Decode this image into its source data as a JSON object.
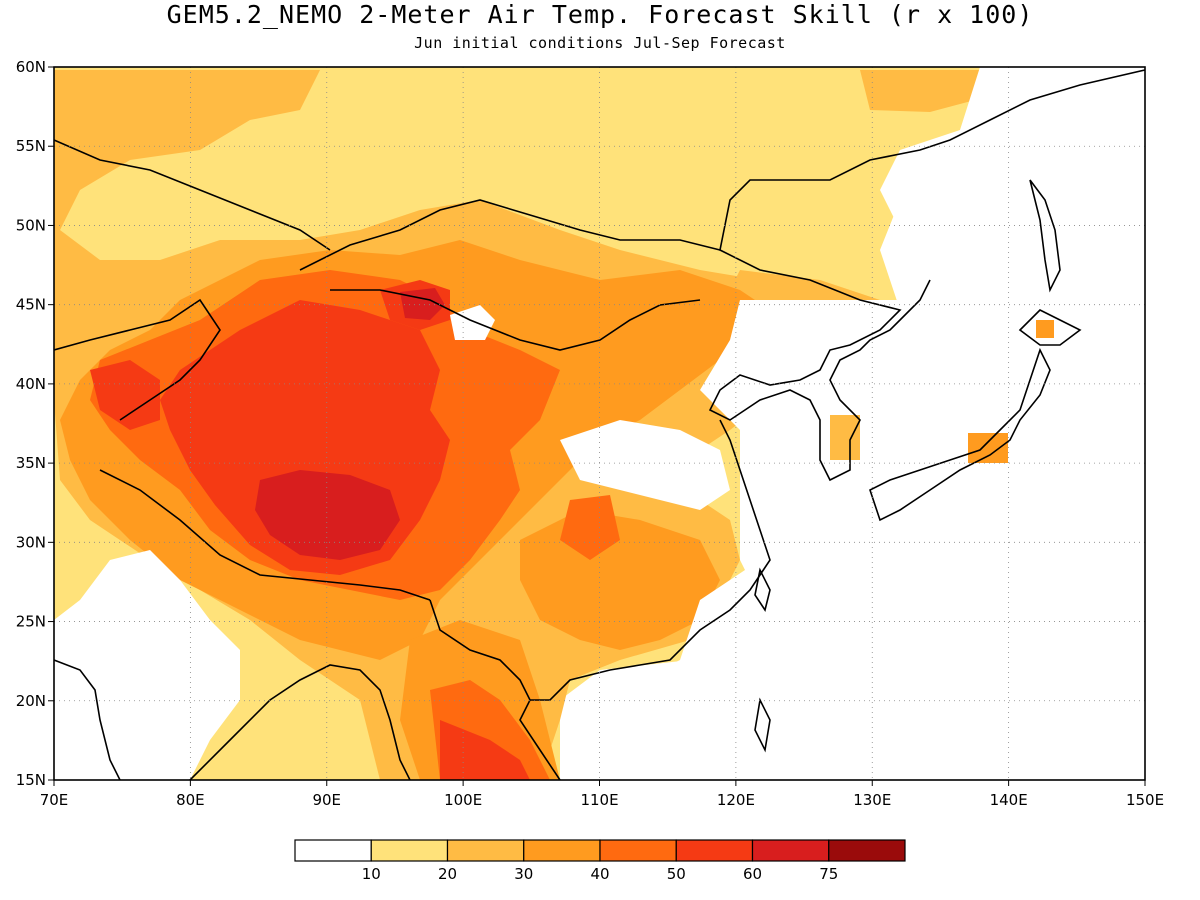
{
  "title": "GEM5.2_NEMO 2-Meter Air Temp. Forecast Skill (r x 100)",
  "subtitle": "Jun initial conditions   Jul-Sep Forecast",
  "map": {
    "lon_range": [
      70,
      150
    ],
    "lat_range": [
      15,
      60
    ],
    "lon_ticks": [
      "70E",
      "80E",
      "90E",
      "100E",
      "110E",
      "120E",
      "130E",
      "140E",
      "150E"
    ],
    "lat_ticks": [
      "15N",
      "20N",
      "25N",
      "30N",
      "35N",
      "40N",
      "45N",
      "50N",
      "55N",
      "60N"
    ],
    "gridlines": "dotted"
  },
  "colorbar": {
    "colors": [
      "#ffffff",
      "#ffe27a",
      "#ffbb44",
      "#ff9b1f",
      "#ff6a10",
      "#f53a14",
      "#d81e1e",
      "#9a0b0b"
    ],
    "labels": [
      "10",
      "20",
      "30",
      "40",
      "50",
      "60",
      "75"
    ]
  },
  "regions": [
    {
      "level": 2,
      "desc": "mongolia-siberia-band"
    },
    {
      "level": 4,
      "desc": "tibetan-plateau"
    },
    {
      "level": 6,
      "desc": "tibet-core"
    },
    {
      "level": 5,
      "desc": "indochina"
    }
  ]
}
